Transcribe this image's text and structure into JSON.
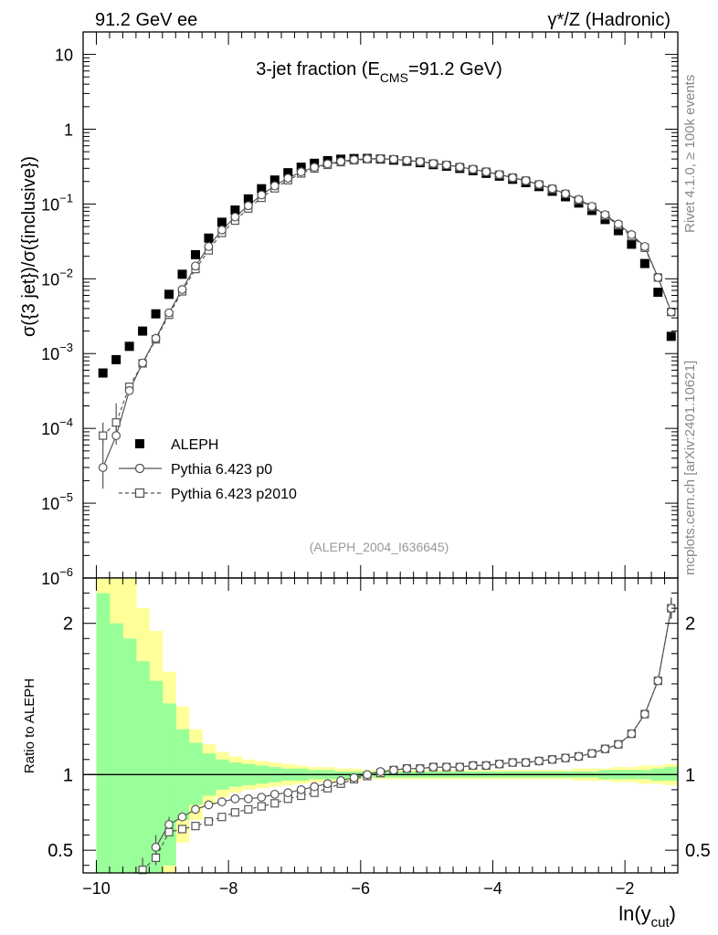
{
  "header": {
    "left": "91.2 GeV ee",
    "right": "γ*/Z (Hadronic)"
  },
  "side_labels": {
    "rivet": "Rivet 4.1.0, ≥ 100k events",
    "mcplots": "mcplots.cern.ch [arXiv:2401.10621]"
  },
  "chart_data": {
    "type": "scatter",
    "title": "3-jet fraction (E",
    "title_sub": "CMS",
    "title_rest": "=91.2 GeV)",
    "analysis_id": "(ALEPH_2004_I636645)",
    "ylabel": "σ({3 jet})/σ({inclusive})",
    "ratio_ylabel": "Ratio to ALEPH",
    "xlabel": "ln(y",
    "xlabel_sub": "cut",
    "xlabel_close": ")",
    "xlim": [
      -10.2,
      -1.2
    ],
    "ylim_log": [
      -6,
      1.3
    ],
    "ratio_ylim": [
      0.35,
      2.3
    ],
    "x_ticks": [
      -10,
      -8,
      -6,
      -4,
      -2
    ],
    "x_tick_labels": [
      "−10",
      "−8",
      "−6",
      "−4",
      "−2"
    ],
    "y_ticks": [
      {
        "exp": 1,
        "label": "10"
      },
      {
        "exp": 0,
        "label": "1"
      },
      {
        "exp": -1,
        "base": "10",
        "sup": "−1"
      },
      {
        "exp": -2,
        "base": "10",
        "sup": "−2"
      },
      {
        "exp": -3,
        "base": "10",
        "sup": "−3"
      },
      {
        "exp": -4,
        "base": "10",
        "sup": "−4"
      },
      {
        "exp": -5,
        "base": "10",
        "sup": "−5"
      },
      {
        "exp": -6,
        "base": "10",
        "sup": "−6"
      }
    ],
    "ratio_ticks": [
      {
        "value": 2,
        "label": "2"
      },
      {
        "value": 1,
        "label": "1"
      },
      {
        "value": 0.5,
        "label": "0.5"
      }
    ],
    "x": [
      -9.9,
      -9.7,
      -9.5,
      -9.3,
      -9.1,
      -8.9,
      -8.7,
      -8.5,
      -8.3,
      -8.1,
      -7.9,
      -7.7,
      -7.5,
      -7.3,
      -7.1,
      -6.9,
      -6.7,
      -6.5,
      -6.3,
      -6.1,
      -5.9,
      -5.7,
      -5.5,
      -5.3,
      -5.1,
      -4.9,
      -4.7,
      -4.5,
      -4.3,
      -4.1,
      -3.9,
      -3.7,
      -3.5,
      -3.3,
      -3.1,
      -2.9,
      -2.7,
      -2.5,
      -2.3,
      -2.1,
      -1.9,
      -1.7,
      -1.5,
      -1.3
    ],
    "series": [
      {
        "name": "ALEPH",
        "marker": "filled-square",
        "values": [
          0.00055,
          0.00083,
          0.00125,
          0.002,
          0.0034,
          0.0062,
          0.0115,
          0.021,
          0.035,
          0.057,
          0.083,
          0.117,
          0.16,
          0.209,
          0.262,
          0.31,
          0.35,
          0.38,
          0.397,
          0.405,
          0.406,
          0.399,
          0.386,
          0.373,
          0.357,
          0.336,
          0.32,
          0.299,
          0.279,
          0.257,
          0.236,
          0.214,
          0.193,
          0.171,
          0.148,
          0.125,
          0.103,
          0.082,
          0.062,
          0.044,
          0.029,
          0.016,
          0.0066,
          0.0017
        ]
      },
      {
        "name": "Pythia 6.423 p0",
        "marker": "open-circle",
        "line": "solid",
        "values": [
          3e-05,
          8e-05,
          0.00032,
          0.00075,
          0.0016,
          0.0035,
          0.0072,
          0.0148,
          0.027,
          0.045,
          0.067,
          0.095,
          0.132,
          0.175,
          0.222,
          0.269,
          0.31,
          0.344,
          0.371,
          0.391,
          0.402,
          0.404,
          0.397,
          0.383,
          0.369,
          0.348,
          0.333,
          0.312,
          0.292,
          0.27,
          0.248,
          0.225,
          0.205,
          0.183,
          0.16,
          0.137,
          0.115,
          0.093,
          0.072,
          0.054,
          0.039,
          0.027,
          0.0104,
          0.0036
        ]
      },
      {
        "name": "Pythia 6.423 p2010",
        "marker": "open-square",
        "line": "dashed",
        "values": [
          8e-05,
          0.00012,
          0.00036,
          0.00074,
          0.00155,
          0.0033,
          0.0068,
          0.0135,
          0.024,
          0.041,
          0.06,
          0.087,
          0.121,
          0.162,
          0.208,
          0.256,
          0.298,
          0.334,
          0.362,
          0.384,
          0.398,
          0.402,
          0.396,
          0.382,
          0.368,
          0.347,
          0.332,
          0.311,
          0.291,
          0.27,
          0.247,
          0.225,
          0.205,
          0.182,
          0.159,
          0.136,
          0.113,
          0.091,
          0.07,
          0.052,
          0.037,
          0.026,
          0.0104,
          0.0036
        ]
      }
    ],
    "ratio_series": [
      {
        "name": "Pythia 6.423 p0",
        "x": [
          -9.1,
          -8.9,
          -8.7,
          -8.5,
          -8.3,
          -8.1,
          -7.9,
          -7.7,
          -7.5,
          -7.3,
          -7.1,
          -6.9,
          -6.7,
          -6.5,
          -6.3,
          -6.1,
          -5.9,
          -5.7,
          -5.5,
          -5.3,
          -5.1,
          -4.9,
          -4.7,
          -4.5,
          -4.3,
          -4.1,
          -3.9,
          -3.7,
          -3.5,
          -3.3,
          -3.1,
          -2.9,
          -2.7,
          -2.5,
          -2.3,
          -2.1,
          -1.9,
          -1.7,
          -1.5,
          -1.3
        ],
        "values": [
          0.52,
          0.67,
          0.72,
          0.77,
          0.8,
          0.82,
          0.84,
          0.84,
          0.85,
          0.87,
          0.88,
          0.9,
          0.92,
          0.94,
          0.96,
          0.98,
          1.0,
          1.02,
          1.03,
          1.04,
          1.04,
          1.05,
          1.05,
          1.05,
          1.06,
          1.06,
          1.07,
          1.08,
          1.08,
          1.09,
          1.1,
          1.11,
          1.12,
          1.14,
          1.17,
          1.2,
          1.27,
          1.4,
          1.62,
          2.1
        ]
      },
      {
        "name": "Pythia 6.423 p2010",
        "x": [
          -9.3,
          -9.1,
          -8.9,
          -8.7,
          -8.5,
          -8.3,
          -8.1,
          -7.9,
          -7.7,
          -7.5,
          -7.3,
          -7.1,
          -6.9,
          -6.7,
          -6.5,
          -6.3,
          -6.1,
          -5.9,
          -5.7,
          -5.5,
          -5.3,
          -5.1,
          -4.9,
          -4.7,
          -4.5,
          -4.3,
          -4.1,
          -3.9,
          -3.7,
          -3.5,
          -3.3,
          -3.1,
          -2.9,
          -2.7,
          -2.5,
          -2.3,
          -2.1,
          -1.9,
          -1.7,
          -1.5,
          -1.3
        ],
        "values": [
          0.37,
          0.45,
          0.62,
          0.64,
          0.66,
          0.69,
          0.72,
          0.75,
          0.77,
          0.79,
          0.81,
          0.84,
          0.86,
          0.88,
          0.91,
          0.94,
          0.97,
          0.99,
          1.01,
          1.03,
          1.04,
          1.04,
          1.05,
          1.05,
          1.05,
          1.06,
          1.06,
          1.07,
          1.08,
          1.08,
          1.09,
          1.1,
          1.11,
          1.12,
          1.14,
          1.17,
          1.2,
          1.27,
          1.4,
          1.62,
          2.1
        ]
      }
    ],
    "uncertainty_bands": {
      "x_edges": [
        -10.0,
        -9.8,
        -9.6,
        -9.4,
        -9.2,
        -9.0,
        -8.8,
        -8.6,
        -8.4,
        -8.2,
        -8.0,
        -7.8,
        -7.6,
        -7.4,
        -7.2,
        -7.0,
        -6.8,
        -6.6,
        -6.4,
        -6.2,
        -6.0,
        -5.8,
        -5.6,
        -5.4,
        -5.2,
        -5.0,
        -4.8,
        -4.6,
        -4.4,
        -4.2,
        -4.0,
        -3.8,
        -3.6,
        -3.4,
        -3.2,
        -3.0,
        -2.8,
        -2.6,
        -2.4,
        -2.2,
        -2.0,
        -1.8,
        -1.6,
        -1.4,
        -1.2
      ],
      "inner": [
        [
          0.35,
          2.2
        ],
        [
          0.35,
          2.0
        ],
        [
          0.35,
          1.9
        ],
        [
          0.35,
          1.75
        ],
        [
          0.35,
          1.62
        ],
        [
          0.4,
          1.47
        ],
        [
          0.7,
          1.3
        ],
        [
          0.8,
          1.21
        ],
        [
          0.86,
          1.14
        ],
        [
          0.9,
          1.1
        ],
        [
          0.92,
          1.08
        ],
        [
          0.93,
          1.07
        ],
        [
          0.94,
          1.06
        ],
        [
          0.95,
          1.05
        ],
        [
          0.96,
          1.04
        ],
        [
          0.96,
          1.04
        ],
        [
          0.97,
          1.03
        ],
        [
          0.97,
          1.03
        ],
        [
          0.97,
          1.02
        ],
        [
          0.98,
          1.02
        ],
        [
          0.98,
          1.02
        ],
        [
          0.98,
          1.02
        ],
        [
          0.98,
          1.02
        ],
        [
          0.98,
          1.02
        ],
        [
          0.98,
          1.02
        ],
        [
          0.98,
          1.02
        ],
        [
          0.98,
          1.02
        ],
        [
          0.98,
          1.02
        ],
        [
          0.98,
          1.02
        ],
        [
          0.98,
          1.02
        ],
        [
          0.98,
          1.02
        ],
        [
          0.98,
          1.02
        ],
        [
          0.98,
          1.02
        ],
        [
          0.98,
          1.02
        ],
        [
          0.98,
          1.02
        ],
        [
          0.98,
          1.02
        ],
        [
          0.98,
          1.02
        ],
        [
          0.98,
          1.02
        ],
        [
          0.97,
          1.03
        ],
        [
          0.97,
          1.03
        ],
        [
          0.97,
          1.03
        ],
        [
          0.97,
          1.03
        ],
        [
          0.96,
          1.04
        ],
        [
          0.96,
          1.05
        ]
      ],
      "outer": [
        [
          0.35,
          2.3
        ],
        [
          0.35,
          2.3
        ],
        [
          0.35,
          2.3
        ],
        [
          0.35,
          2.1
        ],
        [
          0.35,
          1.95
        ],
        [
          0.35,
          1.68
        ],
        [
          0.55,
          1.45
        ],
        [
          0.7,
          1.3
        ],
        [
          0.8,
          1.2
        ],
        [
          0.85,
          1.15
        ],
        [
          0.88,
          1.12
        ],
        [
          0.9,
          1.1
        ],
        [
          0.91,
          1.09
        ],
        [
          0.92,
          1.08
        ],
        [
          0.93,
          1.07
        ],
        [
          0.94,
          1.06
        ],
        [
          0.95,
          1.05
        ],
        [
          0.95,
          1.05
        ],
        [
          0.96,
          1.04
        ],
        [
          0.96,
          1.04
        ],
        [
          0.97,
          1.03
        ],
        [
          0.97,
          1.03
        ],
        [
          0.97,
          1.03
        ],
        [
          0.97,
          1.03
        ],
        [
          0.97,
          1.03
        ],
        [
          0.97,
          1.03
        ],
        [
          0.97,
          1.03
        ],
        [
          0.97,
          1.03
        ],
        [
          0.97,
          1.03
        ],
        [
          0.97,
          1.03
        ],
        [
          0.97,
          1.03
        ],
        [
          0.97,
          1.03
        ],
        [
          0.97,
          1.03
        ],
        [
          0.97,
          1.03
        ],
        [
          0.97,
          1.03
        ],
        [
          0.97,
          1.03
        ],
        [
          0.96,
          1.04
        ],
        [
          0.96,
          1.04
        ],
        [
          0.96,
          1.04
        ],
        [
          0.95,
          1.05
        ],
        [
          0.95,
          1.05
        ],
        [
          0.94,
          1.06
        ],
        [
          0.94,
          1.06
        ],
        [
          0.93,
          1.07
        ]
      ]
    },
    "legend_position": "lower-left",
    "colors": {
      "data": "#000000",
      "mc": "#555555",
      "band_inner": "#99ff99",
      "band_outer": "#ffff99",
      "axis": "#000000",
      "side_text": "#888888"
    }
  }
}
